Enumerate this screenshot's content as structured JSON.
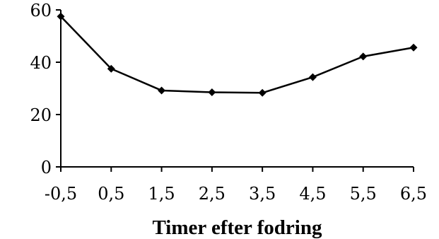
{
  "chart_data": {
    "type": "line",
    "title": "",
    "xlabel": "Timer efter fodring",
    "ylabel": "",
    "categories": [
      "-0,5",
      "0,5",
      "1,5",
      "2,5",
      "3,5",
      "4,5",
      "5,5",
      "6,5"
    ],
    "series": [
      {
        "values": [
          57.5,
          37.5,
          29.2,
          28.5,
          28.3,
          34.3,
          42.2,
          45.6
        ]
      }
    ],
    "ylim": [
      0,
      60
    ],
    "yticks": [
      0,
      20,
      40,
      60
    ],
    "yticklabels": [
      "0",
      "20",
      "40",
      "60"
    ],
    "grid": false,
    "legend": "none",
    "marker": "diamond",
    "colors": {
      "line": "#000000",
      "marker": "#000000"
    }
  }
}
